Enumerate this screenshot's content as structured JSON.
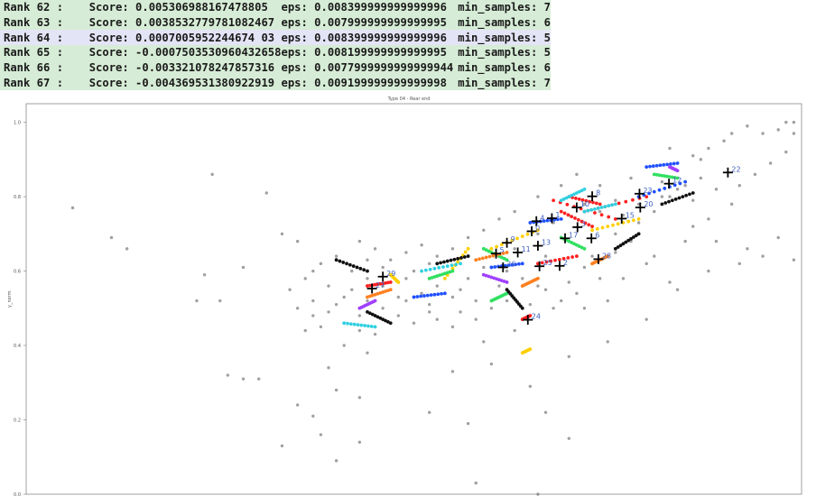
{
  "table": {
    "rows": [
      {
        "rank": "Rank 62 :",
        "score": "Score: 0.005306988167478805",
        "eps": "eps: 0.008399999999999996",
        "min_samples": "min_samples: 7",
        "highlight": "green"
      },
      {
        "rank": "Rank 63 :",
        "score": "Score: 0.0038532779781082467",
        "eps": "eps: 0.007999999999999995",
        "min_samples": "min_samples: 6",
        "highlight": "green"
      },
      {
        "rank": "Rank 64 :",
        "score": "Score: 0.0007005952244674 03",
        "eps": "eps: 0.008399999999999996",
        "min_samples": "min_samples: 5",
        "highlight": "blue"
      },
      {
        "rank": "Rank 65 :",
        "score": "Score: -0.0007503530960432658",
        "eps": "eps: 0.008199999999999995",
        "min_samples": "min_samples: 5",
        "highlight": "green"
      },
      {
        "rank": "Rank 66 :",
        "score": "Score: -0.003321078247857316",
        "eps": "eps: 0.0077999999999999944",
        "min_samples": "min_samples: 6",
        "highlight": "green"
      },
      {
        "rank": "Rank 67 :",
        "score": "Score: -0.004369531380922919",
        "eps": "eps: 0.009199999999999998",
        "min_samples": "min_samples: 7",
        "highlight": "green"
      }
    ]
  },
  "chart_data": {
    "type": "scatter",
    "title": "Type 04 - Rear end",
    "xlabel": "",
    "ylabel": "y_norm",
    "ylim": [
      0.0,
      1.05
    ],
    "xlim": [
      0.0,
      1.0
    ],
    "yticks": [
      "0.0",
      "0.2",
      "0.4",
      "0.6",
      "0.8",
      "1.0"
    ],
    "grid": false,
    "legend": "none",
    "noise_color": "#808080",
    "cluster_colors": [
      "#ff2020",
      "#ffd000",
      "#2050ff",
      "#30e060",
      "#30d0e0",
      "#a040ff",
      "#ff8020",
      "#101010"
    ],
    "centroid_marker": "black plus",
    "centroid_label_color": "#4060c0",
    "centroids": [
      {
        "label": "22",
        "x": 0.905,
        "y": 0.865
      },
      {
        "label": "12",
        "x": 0.829,
        "y": 0.835
      },
      {
        "label": "23",
        "x": 0.791,
        "y": 0.808
      },
      {
        "label": "20",
        "x": 0.792,
        "y": 0.771
      },
      {
        "label": "15",
        "x": 0.768,
        "y": 0.741
      },
      {
        "label": "8",
        "x": 0.73,
        "y": 0.801
      },
      {
        "label": "10",
        "x": 0.71,
        "y": 0.771
      },
      {
        "label": "3",
        "x": 0.711,
        "y": 0.718
      },
      {
        "label": "17",
        "x": 0.695,
        "y": 0.688
      },
      {
        "label": "6",
        "x": 0.729,
        "y": 0.688
      },
      {
        "label": "4",
        "x": 0.658,
        "y": 0.734
      },
      {
        "label": "1",
        "x": 0.678,
        "y": 0.742
      },
      {
        "label": "0",
        "x": 0.652,
        "y": 0.707
      },
      {
        "label": "13",
        "x": 0.66,
        "y": 0.668
      },
      {
        "label": "9",
        "x": 0.62,
        "y": 0.676
      },
      {
        "label": "5",
        "x": 0.606,
        "y": 0.647
      },
      {
        "label": "11",
        "x": 0.634,
        "y": 0.65
      },
      {
        "label": "28",
        "x": 0.738,
        "y": 0.632
      },
      {
        "label": "2",
        "x": 0.688,
        "y": 0.614
      },
      {
        "label": "25",
        "x": 0.662,
        "y": 0.613
      },
      {
        "label": "26",
        "x": 0.615,
        "y": 0.61
      },
      {
        "label": "29",
        "x": 0.46,
        "y": 0.585
      },
      {
        "label": "27",
        "x": 0.446,
        "y": 0.553
      },
      {
        "label": "24",
        "x": 0.647,
        "y": 0.469
      }
    ],
    "noise_points": [
      [
        0.06,
        0.77
      ],
      [
        0.11,
        0.69
      ],
      [
        0.13,
        0.66
      ],
      [
        0.24,
        0.86
      ],
      [
        0.23,
        0.59
      ],
      [
        0.22,
        0.52
      ],
      [
        0.25,
        0.52
      ],
      [
        0.26,
        0.32
      ],
      [
        0.28,
        0.31
      ],
      [
        0.3,
        0.31
      ],
      [
        0.31,
        0.81
      ],
      [
        0.33,
        0.7
      ],
      [
        0.35,
        0.68
      ],
      [
        0.28,
        0.61
      ],
      [
        0.37,
        0.6
      ],
      [
        0.36,
        0.44
      ],
      [
        0.41,
        0.4
      ],
      [
        0.44,
        0.38
      ],
      [
        0.39,
        0.34
      ],
      [
        0.4,
        0.28
      ],
      [
        0.43,
        0.26
      ],
      [
        0.35,
        0.24
      ],
      [
        0.37,
        0.21
      ],
      [
        0.38,
        0.16
      ],
      [
        0.33,
        0.13
      ],
      [
        0.4,
        0.09
      ],
      [
        0.43,
        0.14
      ],
      [
        0.52,
        0.22
      ],
      [
        0.57,
        0.19
      ],
      [
        0.55,
        0.33
      ],
      [
        0.6,
        0.35
      ],
      [
        0.65,
        0.29
      ],
      [
        0.67,
        0.22
      ],
      [
        0.7,
        0.15
      ],
      [
        0.58,
        0.03
      ],
      [
        0.66,
        0.0
      ],
      [
        0.7,
        0.37
      ],
      [
        0.75,
        0.41
      ],
      [
        0.8,
        0.47
      ],
      [
        0.84,
        0.55
      ],
      [
        0.88,
        0.6
      ],
      [
        0.92,
        0.62
      ],
      [
        0.95,
        0.64
      ],
      [
        0.99,
        0.63
      ],
      [
        0.97,
        0.69
      ],
      [
        0.93,
        0.66
      ],
      [
        0.89,
        0.68
      ],
      [
        0.86,
        0.72
      ],
      [
        0.83,
        0.57
      ],
      [
        0.8,
        0.62
      ],
      [
        0.78,
        0.68
      ],
      [
        0.76,
        0.65
      ],
      [
        0.74,
        0.58
      ],
      [
        0.71,
        0.54
      ],
      [
        0.68,
        0.5
      ],
      [
        0.63,
        0.44
      ],
      [
        0.59,
        0.41
      ],
      [
        0.55,
        0.45
      ],
      [
        0.52,
        0.49
      ],
      [
        0.49,
        0.52
      ],
      [
        0.47,
        0.46
      ],
      [
        0.45,
        0.43
      ],
      [
        0.43,
        0.48
      ],
      [
        0.41,
        0.53
      ],
      [
        0.39,
        0.56
      ],
      [
        0.42,
        0.6
      ],
      [
        0.44,
        0.63
      ],
      [
        0.46,
        0.61
      ],
      [
        0.48,
        0.57
      ],
      [
        0.5,
        0.6
      ],
      [
        0.52,
        0.62
      ],
      [
        0.54,
        0.58
      ],
      [
        0.56,
        0.55
      ],
      [
        0.58,
        0.52
      ],
      [
        0.61,
        0.56
      ],
      [
        0.64,
        0.58
      ],
      [
        0.67,
        0.55
      ],
      [
        0.69,
        0.52
      ],
      [
        0.72,
        0.5
      ],
      [
        0.75,
        0.52
      ],
      [
        0.77,
        0.58
      ],
      [
        0.81,
        0.64
      ],
      [
        0.85,
        0.68
      ],
      [
        0.88,
        0.74
      ],
      [
        0.91,
        0.78
      ],
      [
        0.94,
        0.86
      ],
      [
        0.96,
        0.89
      ],
      [
        0.98,
        0.92
      ],
      [
        0.99,
        0.97
      ],
      [
        0.9,
        0.95
      ],
      [
        0.88,
        0.93
      ],
      [
        0.86,
        0.91
      ],
      [
        0.84,
        0.87
      ],
      [
        0.82,
        0.84
      ],
      [
        0.8,
        0.88
      ],
      [
        0.78,
        0.85
      ],
      [
        0.83,
        0.93
      ],
      [
        0.93,
        0.99
      ],
      [
        0.95,
        0.97
      ],
      [
        0.98,
        1.0
      ],
      [
        0.99,
        1.0
      ],
      [
        0.97,
        0.98
      ],
      [
        0.91,
        0.97
      ],
      [
        0.87,
        0.9
      ],
      [
        0.85,
        0.83
      ],
      [
        0.83,
        0.8
      ],
      [
        0.86,
        0.79
      ],
      [
        0.89,
        0.82
      ],
      [
        0.92,
        0.83
      ],
      [
        0.87,
        0.85
      ],
      [
        0.76,
        0.79
      ],
      [
        0.74,
        0.83
      ],
      [
        0.71,
        0.86
      ],
      [
        0.69,
        0.83
      ],
      [
        0.66,
        0.8
      ],
      [
        0.63,
        0.76
      ],
      [
        0.61,
        0.74
      ],
      [
        0.59,
        0.71
      ],
      [
        0.57,
        0.69
      ],
      [
        0.55,
        0.66
      ],
      [
        0.53,
        0.64
      ],
      [
        0.51,
        0.67
      ],
      [
        0.49,
        0.65
      ],
      [
        0.47,
        0.63
      ],
      [
        0.45,
        0.66
      ],
      [
        0.43,
        0.68
      ],
      [
        0.4,
        0.64
      ],
      [
        0.38,
        0.62
      ],
      [
        0.36,
        0.58
      ],
      [
        0.34,
        0.55
      ],
      [
        0.37,
        0.52
      ],
      [
        0.39,
        0.49
      ],
      [
        0.41,
        0.46
      ],
      [
        0.43,
        0.44
      ],
      [
        0.46,
        0.5
      ],
      [
        0.48,
        0.48
      ],
      [
        0.5,
        0.46
      ],
      [
        0.53,
        0.47
      ],
      [
        0.56,
        0.49
      ],
      [
        0.58,
        0.47
      ],
      [
        0.6,
        0.5
      ],
      [
        0.62,
        0.52
      ],
      [
        0.65,
        0.51
      ],
      [
        0.66,
        0.56
      ],
      [
        0.7,
        0.57
      ],
      [
        0.72,
        0.61
      ],
      [
        0.73,
        0.64
      ],
      [
        0.76,
        0.7
      ],
      [
        0.79,
        0.73
      ],
      [
        0.81,
        0.76
      ],
      [
        0.64,
        0.62
      ],
      [
        0.67,
        0.64
      ],
      [
        0.62,
        0.6
      ],
      [
        0.57,
        0.58
      ],
      [
        0.53,
        0.56
      ],
      [
        0.51,
        0.54
      ],
      [
        0.49,
        0.58
      ],
      [
        0.46,
        0.56
      ],
      [
        0.44,
        0.58
      ],
      [
        0.42,
        0.55
      ],
      [
        0.4,
        0.51
      ],
      [
        0.38,
        0.45
      ],
      [
        0.37,
        0.48
      ],
      [
        0.35,
        0.5
      ],
      [
        0.44,
        0.52
      ],
      [
        0.48,
        0.53
      ],
      [
        0.52,
        0.51
      ],
      [
        0.55,
        0.53
      ],
      [
        0.59,
        0.61
      ],
      [
        0.61,
        0.64
      ],
      [
        0.63,
        0.66
      ],
      [
        0.66,
        0.7
      ],
      [
        0.68,
        0.73
      ],
      [
        0.7,
        0.75
      ],
      [
        0.72,
        0.78
      ],
      [
        0.74,
        0.76
      ],
      [
        0.77,
        0.75
      ],
      [
        0.79,
        0.78
      ],
      [
        0.82,
        0.8
      ],
      [
        0.84,
        0.82
      ]
    ],
    "cluster_segments": [
      {
        "color": 0,
        "from": [
          0.68,
          0.79
        ],
        "to": [
          0.76,
          0.74
        ]
      },
      {
        "color": 0,
        "from": [
          0.7,
          0.8
        ],
        "to": [
          0.74,
          0.78
        ]
      },
      {
        "color": 0,
        "from": [
          0.72,
          0.76
        ],
        "to": [
          0.8,
          0.8
        ]
      },
      {
        "color": 0,
        "from": [
          0.69,
          0.76
        ],
        "to": [
          0.73,
          0.72
        ]
      },
      {
        "color": 0,
        "from": [
          0.66,
          0.62
        ],
        "to": [
          0.71,
          0.64
        ]
      },
      {
        "color": 0,
        "from": [
          0.64,
          0.47
        ],
        "to": [
          0.65,
          0.48
        ]
      },
      {
        "color": 0,
        "from": [
          0.44,
          0.56
        ],
        "to": [
          0.47,
          0.57
        ]
      },
      {
        "color": 1,
        "from": [
          0.6,
          0.66
        ],
        "to": [
          0.66,
          0.71
        ]
      },
      {
        "color": 1,
        "from": [
          0.57,
          0.66
        ],
        "to": [
          0.54,
          0.58
        ]
      },
      {
        "color": 1,
        "from": [
          0.73,
          0.71
        ],
        "to": [
          0.79,
          0.74
        ]
      },
      {
        "color": 1,
        "from": [
          0.64,
          0.38
        ],
        "to": [
          0.65,
          0.39
        ]
      },
      {
        "color": 1,
        "from": [
          0.47,
          0.59
        ],
        "to": [
          0.48,
          0.57
        ]
      },
      {
        "color": 2,
        "from": [
          0.6,
          0.61
        ],
        "to": [
          0.64,
          0.62
        ]
      },
      {
        "color": 2,
        "from": [
          0.85,
          0.84
        ],
        "to": [
          0.79,
          0.8
        ]
      },
      {
        "color": 2,
        "from": [
          0.65,
          0.73
        ],
        "to": [
          0.69,
          0.74
        ]
      },
      {
        "color": 2,
        "from": [
          0.5,
          0.53
        ],
        "to": [
          0.54,
          0.54
        ]
      },
      {
        "color": 2,
        "from": [
          0.8,
          0.88
        ],
        "to": [
          0.84,
          0.89
        ]
      },
      {
        "color": 3,
        "from": [
          0.69,
          0.69
        ],
        "to": [
          0.72,
          0.66
        ]
      },
      {
        "color": 3,
        "from": [
          0.81,
          0.86
        ],
        "to": [
          0.84,
          0.85
        ]
      },
      {
        "color": 3,
        "from": [
          0.59,
          0.66
        ],
        "to": [
          0.62,
          0.63
        ]
      },
      {
        "color": 3,
        "from": [
          0.52,
          0.58
        ],
        "to": [
          0.55,
          0.6
        ]
      },
      {
        "color": 3,
        "from": [
          0.6,
          0.52
        ],
        "to": [
          0.62,
          0.54
        ]
      },
      {
        "color": 4,
        "from": [
          0.51,
          0.6
        ],
        "to": [
          0.56,
          0.62
        ]
      },
      {
        "color": 4,
        "from": [
          0.72,
          0.76
        ],
        "to": [
          0.76,
          0.78
        ]
      },
      {
        "color": 4,
        "from": [
          0.41,
          0.46
        ],
        "to": [
          0.45,
          0.45
        ]
      },
      {
        "color": 4,
        "from": [
          0.69,
          0.79
        ],
        "to": [
          0.72,
          0.82
        ]
      },
      {
        "color": 5,
        "from": [
          0.43,
          0.5
        ],
        "to": [
          0.45,
          0.52
        ]
      },
      {
        "color": 5,
        "from": [
          0.59,
          0.59
        ],
        "to": [
          0.62,
          0.57
        ]
      },
      {
        "color": 5,
        "from": [
          0.83,
          0.88
        ],
        "to": [
          0.84,
          0.87
        ]
      },
      {
        "color": 6,
        "from": [
          0.73,
          0.62
        ],
        "to": [
          0.75,
          0.64
        ]
      },
      {
        "color": 6,
        "from": [
          0.58,
          0.63
        ],
        "to": [
          0.62,
          0.65
        ]
      },
      {
        "color": 6,
        "from": [
          0.44,
          0.53
        ],
        "to": [
          0.47,
          0.55
        ]
      },
      {
        "color": 6,
        "from": [
          0.64,
          0.56
        ],
        "to": [
          0.66,
          0.58
        ]
      },
      {
        "color": 7,
        "from": [
          0.4,
          0.63
        ],
        "to": [
          0.44,
          0.6
        ]
      },
      {
        "color": 7,
        "from": [
          0.44,
          0.49
        ],
        "to": [
          0.47,
          0.46
        ]
      },
      {
        "color": 7,
        "from": [
          0.53,
          0.62
        ],
        "to": [
          0.57,
          0.64
        ]
      },
      {
        "color": 7,
        "from": [
          0.62,
          0.55
        ],
        "to": [
          0.64,
          0.5
        ]
      },
      {
        "color": 7,
        "from": [
          0.76,
          0.66
        ],
        "to": [
          0.79,
          0.7
        ]
      },
      {
        "color": 7,
        "from": [
          0.82,
          0.78
        ],
        "to": [
          0.86,
          0.81
        ]
      }
    ]
  }
}
